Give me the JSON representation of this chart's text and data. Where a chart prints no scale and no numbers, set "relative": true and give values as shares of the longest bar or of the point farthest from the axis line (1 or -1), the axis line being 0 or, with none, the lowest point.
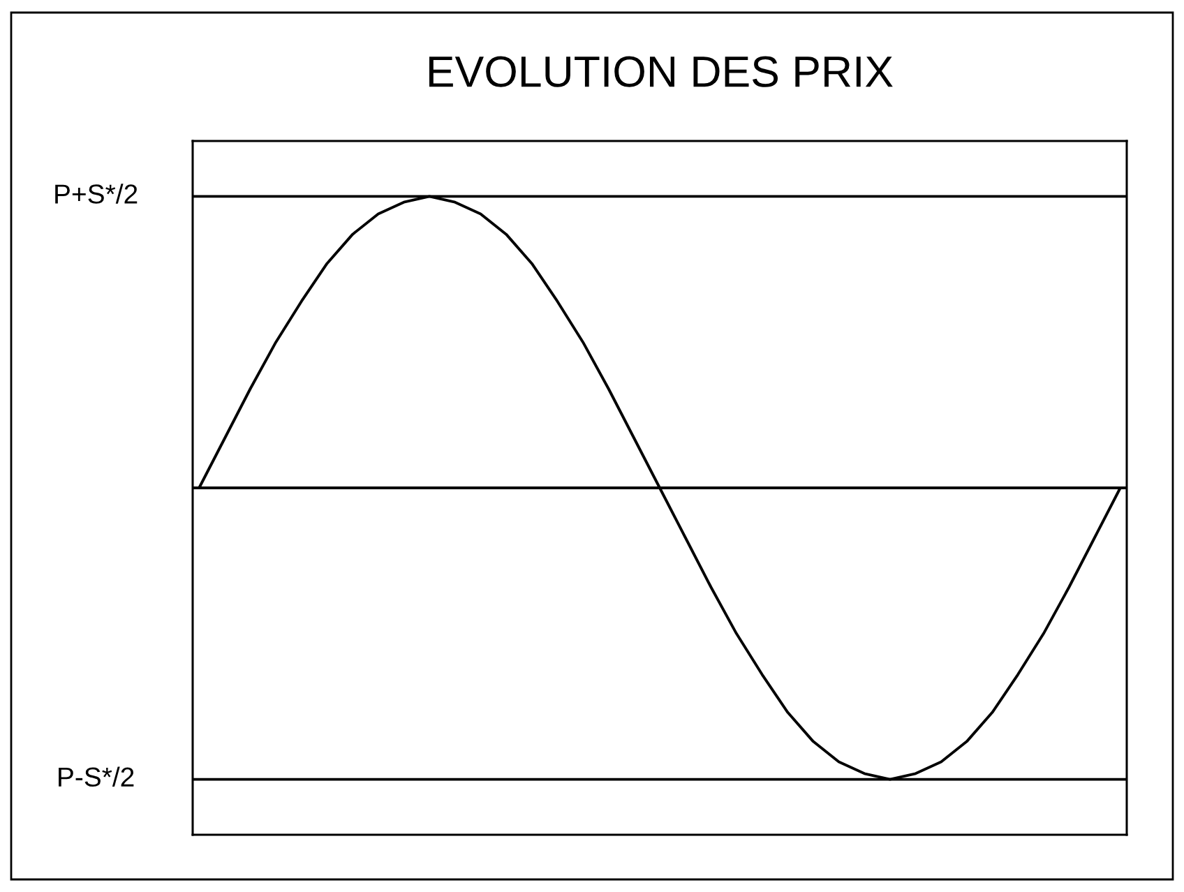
{
  "chart_data": {
    "type": "line",
    "title": "EVOLUTION DES PRIX",
    "categories": [
      null,
      null,
      null,
      null,
      null,
      null,
      null,
      null,
      null,
      null,
      null,
      null,
      null,
      null,
      null,
      null,
      null,
      null,
      null,
      null,
      null,
      null,
      null,
      null,
      null,
      null,
      null,
      null,
      null,
      null,
      null,
      null,
      null,
      null,
      null,
      null,
      null
    ],
    "values": [
      0,
      0.17,
      0.34,
      0.5,
      0.64,
      0.77,
      0.87,
      0.94,
      0.98,
      1,
      0.98,
      0.94,
      0.87,
      0.77,
      0.64,
      0.5,
      0.34,
      0.17,
      0,
      -0.17,
      -0.34,
      -0.5,
      -0.64,
      -0.77,
      -0.87,
      -0.94,
      -0.98,
      -1,
      -0.98,
      -0.94,
      -0.87,
      -0.77,
      -0.64,
      -0.5,
      -0.34,
      -0.17,
      0
    ],
    "color": "#000000",
    "relative": true,
    "ref_lines": [
      {
        "axis": "y",
        "value": 1,
        "label": "P+S*/2"
      },
      {
        "axis": "y",
        "value": 0
      },
      {
        "axis": "y",
        "value": -1,
        "label": "P-S*/2"
      }
    ],
    "tick_labels": false
  }
}
